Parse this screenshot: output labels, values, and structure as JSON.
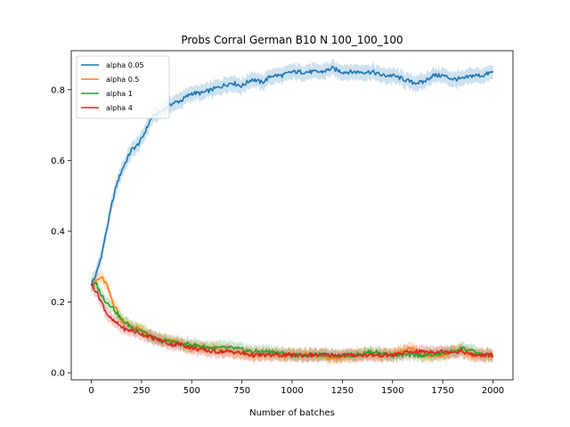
{
  "chart_data": {
    "type": "line",
    "title": "Probs Corral German B10 N 100_100_100",
    "xlabel": "Number of batches",
    "ylabel": "",
    "xlim": [
      -100,
      2100
    ],
    "ylim": [
      -0.02,
      0.91
    ],
    "xticks": [
      0,
      250,
      500,
      750,
      1000,
      1250,
      1500,
      1750,
      2000
    ],
    "yticks": [
      0.0,
      0.2,
      0.4,
      0.6,
      0.8
    ],
    "ytick_labels": [
      "0.0",
      "0.2",
      "0.4",
      "0.6",
      "0.8"
    ],
    "legend_position": "top-left",
    "grid": false,
    "series": [
      {
        "name": "alpha 0.05",
        "color": "#1f77b4",
        "x": [
          0,
          25,
          50,
          75,
          100,
          125,
          150,
          175,
          200,
          225,
          250,
          275,
          300,
          350,
          400,
          450,
          500,
          550,
          600,
          650,
          700,
          750,
          800,
          850,
          900,
          950,
          1000,
          1050,
          1100,
          1150,
          1200,
          1250,
          1300,
          1350,
          1400,
          1450,
          1500,
          1550,
          1600,
          1650,
          1700,
          1750,
          1800,
          1850,
          1900,
          1950,
          2000
        ],
        "y": [
          0.25,
          0.28,
          0.33,
          0.4,
          0.47,
          0.53,
          0.57,
          0.6,
          0.63,
          0.64,
          0.66,
          0.69,
          0.72,
          0.74,
          0.76,
          0.77,
          0.79,
          0.79,
          0.8,
          0.81,
          0.82,
          0.81,
          0.83,
          0.82,
          0.84,
          0.84,
          0.85,
          0.85,
          0.85,
          0.85,
          0.86,
          0.85,
          0.85,
          0.85,
          0.85,
          0.84,
          0.84,
          0.83,
          0.82,
          0.82,
          0.84,
          0.84,
          0.83,
          0.83,
          0.84,
          0.84,
          0.85
        ],
        "band": 0.025
      },
      {
        "name": "alpha 0.5",
        "color": "#ff7f0e",
        "x": [
          0,
          25,
          50,
          75,
          100,
          125,
          150,
          175,
          200,
          250,
          300,
          350,
          400,
          450,
          500,
          600,
          700,
          800,
          900,
          1000,
          1100,
          1200,
          1300,
          1400,
          1500,
          1550,
          1600,
          1650,
          1700,
          1750,
          1800,
          1850,
          1900,
          1950,
          2000
        ],
        "y": [
          0.25,
          0.26,
          0.27,
          0.25,
          0.21,
          0.18,
          0.15,
          0.14,
          0.13,
          0.12,
          0.1,
          0.09,
          0.09,
          0.08,
          0.07,
          0.07,
          0.06,
          0.05,
          0.05,
          0.05,
          0.05,
          0.04,
          0.05,
          0.05,
          0.05,
          0.06,
          0.07,
          0.05,
          0.05,
          0.05,
          0.06,
          0.06,
          0.05,
          0.05,
          0.05
        ],
        "band": 0.02
      },
      {
        "name": "alpha 1",
        "color": "#2ca02c",
        "x": [
          0,
          25,
          50,
          75,
          100,
          125,
          150,
          175,
          200,
          250,
          300,
          350,
          400,
          450,
          500,
          600,
          700,
          800,
          900,
          1000,
          1100,
          1200,
          1300,
          1400,
          1500,
          1600,
          1700,
          1800,
          1850,
          1900,
          1950,
          2000
        ],
        "y": [
          0.25,
          0.25,
          0.22,
          0.2,
          0.19,
          0.17,
          0.15,
          0.14,
          0.13,
          0.12,
          0.1,
          0.09,
          0.09,
          0.08,
          0.08,
          0.07,
          0.07,
          0.06,
          0.06,
          0.05,
          0.05,
          0.05,
          0.05,
          0.06,
          0.05,
          0.05,
          0.05,
          0.06,
          0.07,
          0.06,
          0.05,
          0.05
        ],
        "band": 0.02
      },
      {
        "name": "alpha 4",
        "color": "#d62728",
        "x": [
          0,
          25,
          50,
          75,
          100,
          125,
          150,
          175,
          200,
          250,
          300,
          350,
          400,
          450,
          500,
          600,
          700,
          800,
          900,
          1000,
          1100,
          1200,
          1300,
          1400,
          1500,
          1600,
          1700,
          1800,
          1850,
          1900,
          1950,
          2000
        ],
        "y": [
          0.25,
          0.23,
          0.2,
          0.17,
          0.15,
          0.14,
          0.13,
          0.12,
          0.12,
          0.11,
          0.1,
          0.09,
          0.08,
          0.08,
          0.07,
          0.06,
          0.06,
          0.05,
          0.05,
          0.05,
          0.05,
          0.05,
          0.05,
          0.05,
          0.05,
          0.06,
          0.06,
          0.06,
          0.06,
          0.05,
          0.05,
          0.05
        ],
        "band": 0.02
      }
    ]
  }
}
